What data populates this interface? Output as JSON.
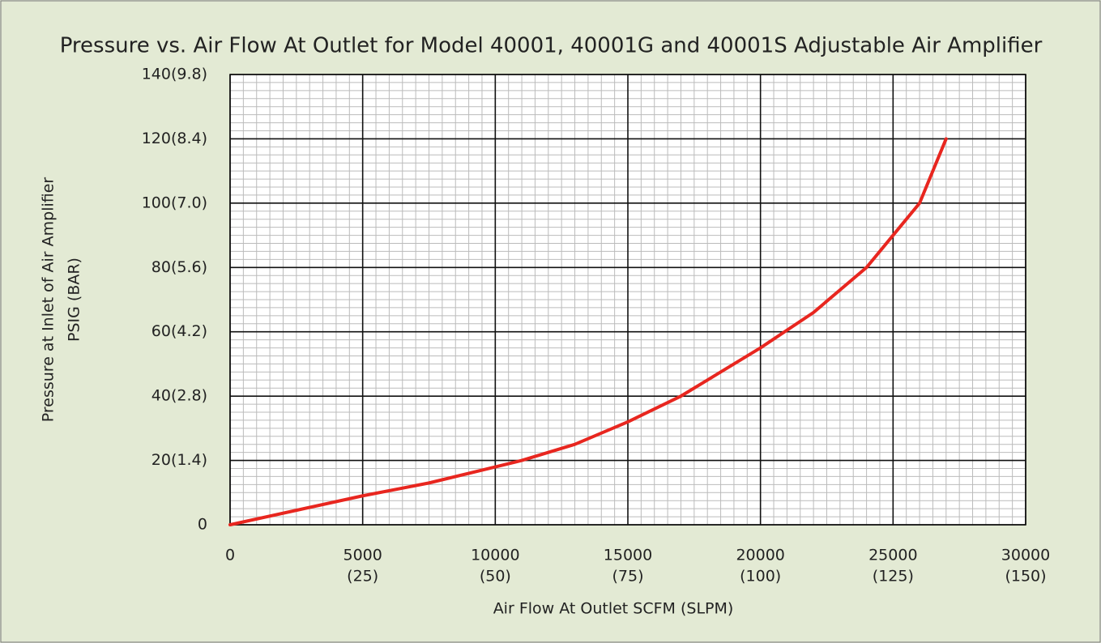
{
  "chart_data": {
    "type": "line",
    "title": "Pressure vs. Air Flow At Outlet for Model 40001, 40001G and 40001S Adjustable Air Amplifier",
    "ylabel": [
      "Pressure at Inlet of Air Amplifier",
      "PSIG (BAR)"
    ],
    "xlabel": "Air Flow At Outlet SCFM (SLPM)",
    "x": [
      0,
      2500,
      5000,
      7500,
      10000,
      11000,
      13000,
      15000,
      17000,
      18000,
      20000,
      22000,
      24000,
      25000,
      26000,
      26500,
      27000
    ],
    "series": [
      {
        "color": "#e8261f",
        "values": [
          0,
          4.5,
          9,
          13,
          18,
          20,
          25,
          32,
          40,
          45,
          55,
          66,
          80,
          90,
          100,
          110,
          120
        ]
      }
    ],
    "xlim": [
      0,
      30000
    ],
    "ylim": [
      0,
      140
    ],
    "xticks": [
      {
        "value": 0,
        "label": "0"
      },
      {
        "value": 5000,
        "label": "5000",
        "sublabel": "(25)"
      },
      {
        "value": 10000,
        "label": "10000",
        "sublabel": "(50)"
      },
      {
        "value": 15000,
        "label": "15000",
        "sublabel": "(75)"
      },
      {
        "value": 20000,
        "label": "20000",
        "sublabel": "(100)"
      },
      {
        "value": 25000,
        "label": "25000",
        "sublabel": "(125)"
      },
      {
        "value": 30000,
        "label": "30000",
        "sublabel": "(150)"
      }
    ],
    "yticks": [
      {
        "value": 0,
        "label": "0"
      },
      {
        "value": 20,
        "label": "20(1.4)"
      },
      {
        "value": 40,
        "label": "40(2.8)"
      },
      {
        "value": 60,
        "label": "60(4.2)"
      },
      {
        "value": 80,
        "label": "80(5.6)"
      },
      {
        "value": 100,
        "label": "100(7.0)"
      },
      {
        "value": 120,
        "label": "120(8.4)"
      },
      {
        "value": 140,
        "label": "140(9.8)"
      }
    ],
    "grid": true,
    "minor_divisions": {
      "x": 10,
      "y": 8
    }
  }
}
